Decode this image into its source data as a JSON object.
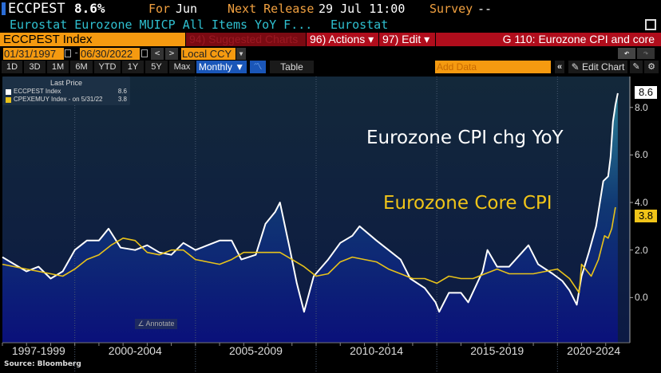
{
  "header": {
    "ticker": "ECCPEST",
    "value": "8.6%",
    "for_label": "For",
    "for_value": "Jun",
    "next_label": "Next Release",
    "next_value": "29 Jul 11:00",
    "survey_label": "Survey",
    "survey_value": "--",
    "description": "Eurostat Eurozone MUICP All Items YoY F...",
    "source": "Eurostat"
  },
  "menu": {
    "security": "ECCPEST Index",
    "suggested": "94) Suggested Charts",
    "actions": "96) Actions ▾",
    "edit": "97) Edit ▾",
    "chart_name": "G 110: Eurozone CPI and core"
  },
  "range": {
    "start": "01/31/1997",
    "end": "06/30/2022",
    "currency": "Local CCY",
    "dash": "-"
  },
  "toolbar": {
    "periods": [
      "1D",
      "3D",
      "1M",
      "6M",
      "YTD",
      "1Y",
      "5Y",
      "Max"
    ],
    "frequency": "Monthly ▼",
    "table": "Table",
    "add_data": "Add Data",
    "edit_chart": "Edit Chart"
  },
  "legend": {
    "title": "Last Price",
    "items": [
      {
        "name": "ECCPEST Index",
        "value": "8.6",
        "color": "#ffffff"
      },
      {
        "name": "CPEXEMUY Index - on 5/31/22",
        "value": "3.8",
        "color": "#e8c21a"
      }
    ]
  },
  "annotate": "Annotate",
  "footer": "Source: Bloomberg",
  "chart_data": {
    "type": "line",
    "title": "G 110: Eurozone CPI and core",
    "xlim": [
      1997,
      2023
    ],
    "ylim": [
      -1.9,
      9.3
    ],
    "yticks": [
      0,
      2,
      4,
      6,
      8
    ],
    "ytick_labels": [
      "0.0",
      "2.0",
      "4.0",
      "6.0",
      "8.0"
    ],
    "xbands": [
      {
        "label": "1997-1999",
        "from": 1997,
        "to": 2000
      },
      {
        "label": "2000-2004",
        "from": 2000,
        "to": 2005
      },
      {
        "label": "2005-2009",
        "from": 2005,
        "to": 2010
      },
      {
        "label": "2010-2014",
        "from": 2010,
        "to": 2015
      },
      {
        "label": "2015-2019",
        "from": 2015,
        "to": 2020
      },
      {
        "label": "2020-2024",
        "from": 2020,
        "to": 2023
      }
    ],
    "annotations": [
      {
        "text": "Eurozone CPI chg YoY",
        "color": "#ffffff"
      },
      {
        "text": "Eurozone Core CPI",
        "color": "#f0c419"
      }
    ],
    "series": [
      {
        "name": "ECCPEST Index",
        "color": "#ffffff",
        "last": "8.6",
        "x": [
          1997.0,
          1997.5,
          1998.0,
          1998.5,
          1999.0,
          1999.5,
          2000.0,
          2000.5,
          2001.0,
          2001.4,
          2001.9,
          2002.5,
          2003.0,
          2003.5,
          2004.0,
          2004.5,
          2005.0,
          2005.5,
          2006.0,
          2006.5,
          2006.9,
          2007.5,
          2007.9,
          2008.3,
          2008.5,
          2008.9,
          2009.2,
          2009.5,
          2009.9,
          2010.5,
          2011.0,
          2011.5,
          2011.8,
          2012.5,
          2013.0,
          2013.5,
          2013.9,
          2014.5,
          2014.95,
          2015.1,
          2015.5,
          2016.0,
          2016.3,
          2016.9,
          2017.1,
          2017.5,
          2018.0,
          2018.8,
          2019.2,
          2019.8,
          2020.2,
          2020.5,
          2020.8,
          2021.0,
          2021.3,
          2021.6,
          2021.9,
          2022.1,
          2022.2,
          2022.3,
          2022.4,
          2022.5
        ],
        "y": [
          1.7,
          1.4,
          1.1,
          1.3,
          0.8,
          1.1,
          2.0,
          2.4,
          2.4,
          2.9,
          2.1,
          2.0,
          2.2,
          1.9,
          1.8,
          2.3,
          2.0,
          2.2,
          2.4,
          2.4,
          1.6,
          1.8,
          3.1,
          3.6,
          4.0,
          2.1,
          0.6,
          -0.6,
          0.9,
          1.6,
          2.3,
          2.6,
          3.0,
          2.4,
          2.0,
          1.6,
          0.8,
          0.4,
          -0.2,
          -0.6,
          0.2,
          0.2,
          -0.2,
          1.1,
          2.0,
          1.3,
          1.3,
          2.2,
          1.4,
          1.0,
          0.7,
          0.3,
          -0.3,
          0.9,
          1.9,
          3.0,
          4.9,
          5.1,
          5.9,
          7.4,
          8.1,
          8.6
        ]
      },
      {
        "name": "CPEXEMUY Index",
        "color": "#e8c21a",
        "last": "3.8",
        "x": [
          1997.0,
          1997.5,
          1998.0,
          1998.5,
          1999.0,
          1999.5,
          2000.0,
          2000.5,
          2001.0,
          2001.5,
          2002.0,
          2002.5,
          2003.0,
          2003.5,
          2004.0,
          2004.5,
          2005.0,
          2005.5,
          2006.0,
          2006.5,
          2007.0,
          2007.5,
          2008.0,
          2008.5,
          2009.0,
          2009.5,
          2010.0,
          2010.5,
          2011.0,
          2011.5,
          2012.0,
          2012.5,
          2013.0,
          2013.5,
          2014.0,
          2014.5,
          2015.0,
          2015.5,
          2016.0,
          2016.5,
          2017.0,
          2017.5,
          2018.0,
          2018.5,
          2019.0,
          2019.5,
          2020.0,
          2020.5,
          2020.9,
          2021.0,
          2021.4,
          2021.7,
          2021.95,
          2022.1,
          2022.25,
          2022.4
        ],
        "y": [
          1.4,
          1.3,
          1.2,
          1.1,
          1.0,
          0.9,
          1.2,
          1.6,
          1.8,
          2.2,
          2.5,
          2.4,
          1.9,
          1.8,
          2.0,
          2.0,
          1.6,
          1.5,
          1.4,
          1.6,
          1.9,
          1.9,
          1.9,
          1.9,
          1.6,
          1.3,
          0.9,
          1.0,
          1.5,
          1.7,
          1.6,
          1.5,
          1.2,
          1.0,
          0.8,
          0.8,
          0.6,
          0.9,
          0.8,
          0.8,
          1.0,
          1.2,
          1.0,
          1.0,
          1.0,
          1.1,
          1.2,
          0.8,
          0.2,
          1.4,
          0.9,
          1.6,
          2.6,
          2.5,
          2.9,
          3.8
        ]
      }
    ]
  }
}
